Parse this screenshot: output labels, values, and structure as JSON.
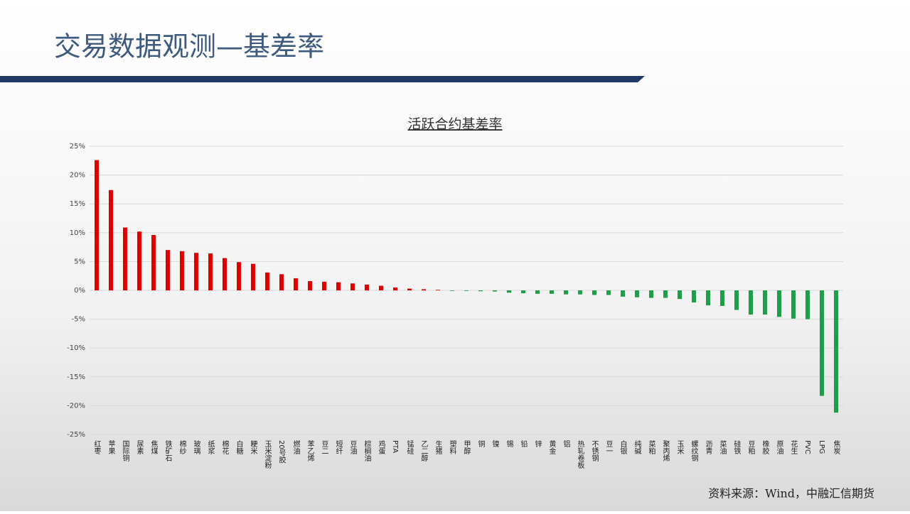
{
  "header": {
    "title": "交易数据观测—基差率"
  },
  "footer": {
    "source": "资料来源：Wind，中融汇信期货"
  },
  "chart_data": {
    "type": "bar",
    "title": "活跃合约基差率",
    "categories": [
      "红枣",
      "苹果",
      "国际铜",
      "尿素",
      "焦煤",
      "铁矿石",
      "棉纱",
      "玻璃",
      "纸浆",
      "棉花",
      "白糖",
      "粳米",
      "玉米淀粉",
      "20号胶",
      "燃油",
      "苯乙烯",
      "豆二",
      "短纤",
      "豆油",
      "棕榈油",
      "鸡蛋",
      "PTA",
      "锰硅",
      "乙二醇",
      "生猪",
      "塑料",
      "甲醇",
      "铜",
      "镍",
      "锡",
      "铅",
      "锌",
      "黄金",
      "铝",
      "热轧卷板",
      "不锈钢",
      "豆一",
      "白银",
      "纯碱",
      "菜粕",
      "聚丙烯",
      "玉米",
      "螺纹钢",
      "沥青",
      "菜油",
      "硅铁",
      "豆粕",
      "橡胶",
      "原油",
      "花生",
      "PVC",
      "LPG",
      "焦炭"
    ],
    "values": [
      22.6,
      17.4,
      10.9,
      10.2,
      9.6,
      7.0,
      6.8,
      6.5,
      6.4,
      5.6,
      4.9,
      4.6,
      3.1,
      2.8,
      2.1,
      1.6,
      1.5,
      1.4,
      1.2,
      1.0,
      0.8,
      0.5,
      0.3,
      0.2,
      0.1,
      -0.1,
      -0.1,
      -0.15,
      -0.2,
      -0.4,
      -0.5,
      -0.6,
      -0.6,
      -0.7,
      -0.7,
      -0.8,
      -0.8,
      -1.1,
      -1.2,
      -1.3,
      -1.3,
      -1.5,
      -2.1,
      -2.6,
      -2.7,
      -3.4,
      -4.2,
      -4.2,
      -4.6,
      -4.9,
      -5.0,
      -18.3,
      -21.2
    ],
    "positive_color": "#e00000",
    "negative_color": "#1f9e4a",
    "ylim": [
      -25,
      25
    ],
    "yticks": [
      {
        "value": -25,
        "label": "-25%"
      },
      {
        "value": -20,
        "label": "-20%"
      },
      {
        "value": -15,
        "label": "-15%"
      },
      {
        "value": -10,
        "label": "-10%"
      },
      {
        "value": -5,
        "label": "-5%"
      },
      {
        "value": 0,
        "label": "0%"
      },
      {
        "value": 5,
        "label": "5%"
      },
      {
        "value": 10,
        "label": "10%"
      },
      {
        "value": 15,
        "label": "15%"
      },
      {
        "value": 20,
        "label": "20%"
      },
      {
        "value": 25,
        "label": "25%"
      }
    ],
    "grid": true
  }
}
